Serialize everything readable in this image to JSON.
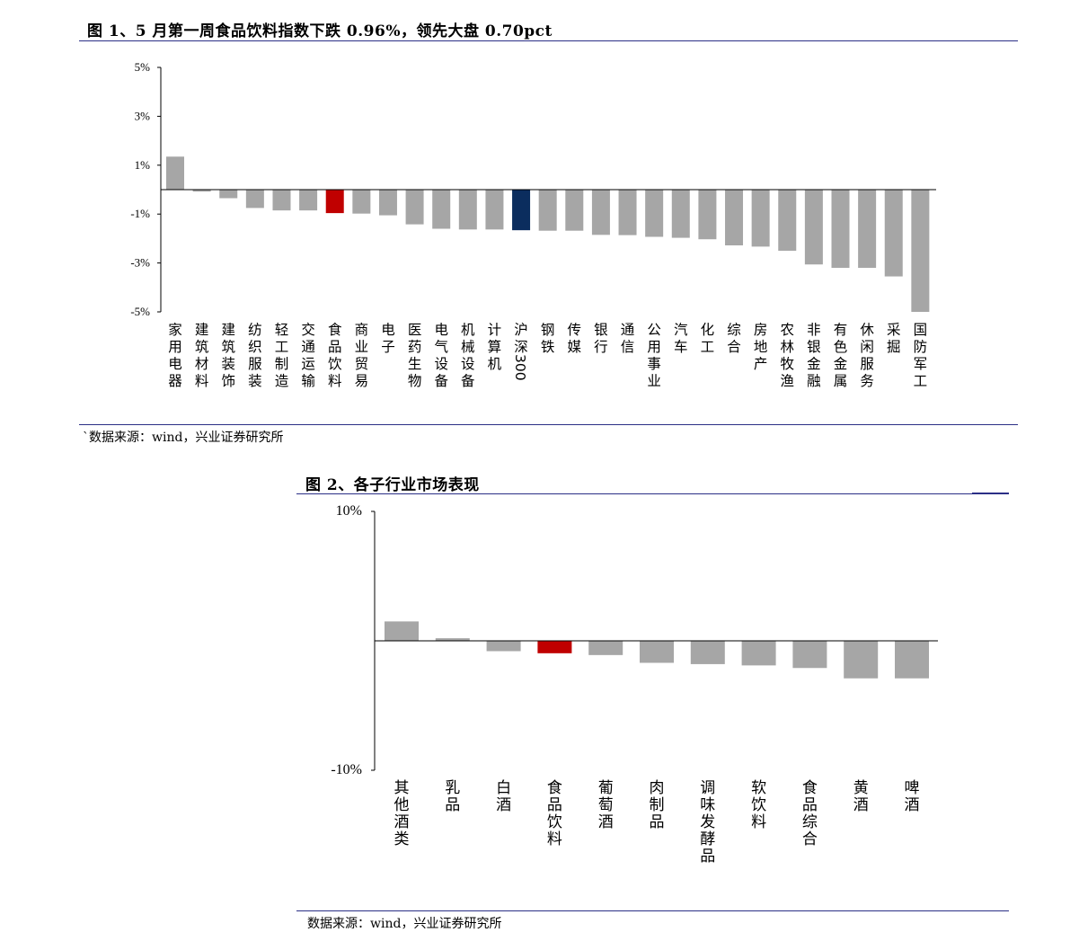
{
  "figure1": {
    "title": "图 1、5 月第一周食品饮料指数下跌 0.96%，领先大盘 0.70pct",
    "source": "`数据来源：wind，兴业证券研究所",
    "colors": {
      "default": "#a6a6a6",
      "highlight_food": "#c00000",
      "highlight_index": "#0b2d5e"
    }
  },
  "figure2": {
    "title": "图 2、各子行业市场表现",
    "source": "数据来源：wind，兴业证券研究所",
    "colors": {
      "default": "#a6a6a6",
      "highlight_food": "#c00000"
    }
  },
  "chart_data": [
    {
      "type": "bar",
      "ylim": [
        -5,
        5
      ],
      "yticks": [
        5,
        3,
        1,
        -1,
        -3,
        -5
      ],
      "ytick_labels": [
        "5%",
        "3%",
        "1%",
        "-1%",
        "-3%",
        "-5%"
      ],
      "grid": false,
      "categories": [
        "家用电器",
        "建筑材料",
        "建筑装饰",
        "纺织服装",
        "轻工制造",
        "交通运输",
        "食品饮料",
        "商业贸易",
        "电子",
        "医药生物",
        "电气设备",
        "机械设备",
        "计算机",
        "沪深300",
        "钢铁",
        "传媒",
        "银行",
        "通信",
        "公用事业",
        "汽车",
        "化工",
        "综合",
        "房地产",
        "农林牧渔",
        "非银金融",
        "有色金属",
        "休闲服务",
        "采掘",
        "国防军工"
      ],
      "values": [
        1.35,
        -0.08,
        -0.35,
        -0.75,
        -0.85,
        -0.85,
        -0.96,
        -0.98,
        -1.05,
        -1.42,
        -1.6,
        -1.63,
        -1.63,
        -1.66,
        -1.68,
        -1.68,
        -1.85,
        -1.86,
        -1.93,
        -1.97,
        -2.03,
        -2.28,
        -2.33,
        -2.5,
        -3.06,
        -3.2,
        -3.2,
        -3.55,
        -5.0
      ],
      "highlight": {
        "食品饮料": "highlight_food",
        "沪深300": "highlight_index"
      }
    },
    {
      "type": "bar",
      "ylim": [
        -10,
        10
      ],
      "yticks": [
        10,
        -10
      ],
      "ytick_labels": [
        "10%",
        "-10%"
      ],
      "grid": false,
      "categories": [
        "其他酒类",
        "乳品",
        "白酒",
        "食品饮料",
        "葡萄酒",
        "肉制品",
        "调味发酵品",
        "软饮料",
        "食品综合",
        "黄酒",
        "啤酒"
      ],
      "values": [
        1.5,
        0.2,
        -0.8,
        -0.96,
        -1.1,
        -1.7,
        -1.8,
        -1.9,
        -2.1,
        -2.9,
        -2.9
      ],
      "highlight": {
        "食品饮料": "highlight_food"
      }
    }
  ]
}
